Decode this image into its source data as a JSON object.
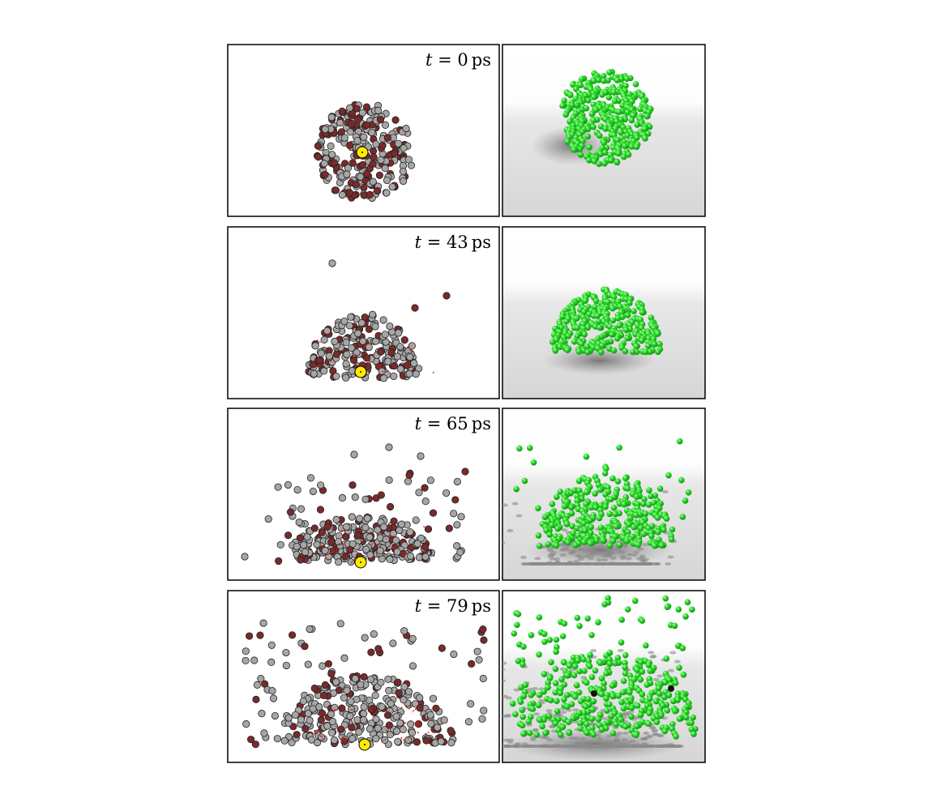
{
  "panels": [
    {
      "time_var": "t",
      "time_value": "0",
      "time_unit": "ps",
      "time_label": "t = 0 ps"
    },
    {
      "time_var": "t",
      "time_value": "43",
      "time_unit": "ps",
      "time_label": "t = 43 ps"
    },
    {
      "time_var": "t",
      "time_value": "65",
      "time_unit": "ps",
      "time_label": "t = 65 ps"
    },
    {
      "time_var": "t",
      "time_value": "79",
      "time_unit": "ps",
      "time_label": "t = 79 ps"
    }
  ],
  "colors": {
    "atom_gray": "#a6a6a6",
    "atom_dark_red": "#7a2a2a",
    "trail_red": "#d81c1c",
    "central_atom_yellow": "#ffea00",
    "render_green": "#22d622",
    "render_green_dark": "#0a8a0a",
    "frame": "#000000"
  },
  "columns": [
    "cross-section-atom-view",
    "3d-render-view"
  ]
}
